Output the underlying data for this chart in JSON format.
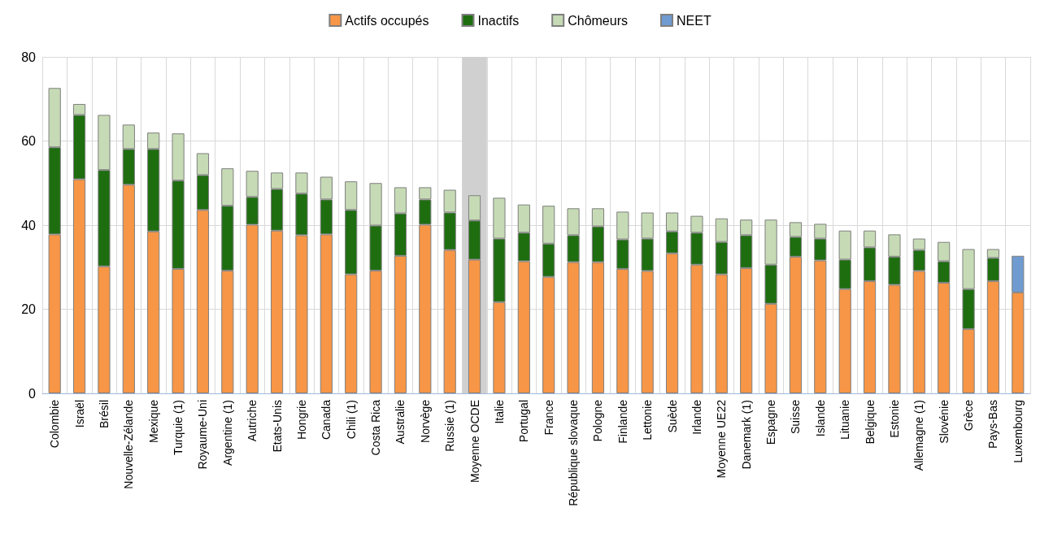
{
  "chart_data": {
    "type": "bar",
    "stacked": true,
    "grid": true,
    "legend": "top",
    "categories": [
      "Colombie",
      "Israël",
      "Brésil",
      "Nouvelle-Zélande",
      "Mexique",
      "Turquie (1)",
      "Royaume-Uni",
      "Argentine (1)",
      "Autriche",
      "Etats-Unis",
      "Hongrie",
      "Canada",
      "Chili (1)",
      "Costa Rica",
      "Australie",
      "Norvège",
      "Russie (1)",
      "Moyenne OCDE",
      "Italie",
      "Portugal",
      "France",
      "République slovaque",
      "Pologne",
      "Finlande",
      "Lettonie",
      "Suède",
      "Irlande",
      "Moyenne UE22",
      "Danemark (1)",
      "Espagne",
      "Suisse",
      "Islande",
      "Lituanie",
      "Belgique",
      "Estonie",
      "Allemagne (1)",
      "Slovénie",
      "Grèce",
      "Pays-Bas",
      "Luxembourg"
    ],
    "series": [
      {
        "name": "Actifs occupés",
        "color": "#f79646",
        "values": [
          37.8,
          50.9,
          30.2,
          49.6,
          38.5,
          29.6,
          43.6,
          29.2,
          40.1,
          38.7,
          37.6,
          37.8,
          28.3,
          29.2,
          32.7,
          40.1,
          34.1,
          31.8,
          21.7,
          31.4,
          27.7,
          31.2,
          31.2,
          29.6,
          29.1,
          33.3,
          30.6,
          28.3,
          29.8,
          21.3,
          32.5,
          31.6,
          24.8,
          26.7,
          25.8,
          29.1,
          26.3,
          15.3,
          26.7,
          24.0
        ]
      },
      {
        "name": "Inactifs",
        "color": "#1e6e10",
        "values": [
          20.7,
          15.3,
          22.9,
          8.5,
          19.6,
          21.0,
          8.3,
          15.4,
          6.6,
          9.9,
          9.9,
          8.3,
          15.3,
          10.7,
          10.1,
          6.0,
          8.9,
          9.3,
          15.1,
          6.8,
          7.9,
          6.4,
          8.5,
          7.0,
          7.7,
          5.2,
          7.6,
          7.7,
          7.8,
          9.3,
          4.7,
          5.2,
          7.0,
          8.0,
          6.7,
          5.0,
          5.1,
          9.5,
          5.5,
          null
        ]
      },
      {
        "name": "Chômeurs",
        "color": "#c6dbb5",
        "values": [
          14.1,
          2.6,
          13.1,
          5.8,
          3.9,
          11.2,
          5.2,
          8.9,
          6.2,
          3.9,
          5.0,
          5.4,
          6.8,
          10.1,
          6.2,
          2.9,
          5.4,
          6.0,
          9.7,
          6.7,
          9.0,
          6.4,
          4.3,
          6.6,
          6.2,
          4.5,
          4.0,
          5.6,
          3.7,
          10.7,
          3.5,
          3.5,
          6.9,
          4.0,
          5.3,
          2.7,
          4.6,
          9.5,
          2.1,
          null
        ]
      },
      {
        "name": "NEET",
        "color": "#6f9bd1",
        "values": [
          null,
          null,
          null,
          null,
          null,
          null,
          null,
          null,
          null,
          null,
          null,
          null,
          null,
          null,
          null,
          null,
          null,
          null,
          null,
          null,
          null,
          null,
          null,
          null,
          null,
          null,
          null,
          null,
          null,
          null,
          null,
          null,
          null,
          null,
          null,
          null,
          null,
          null,
          null,
          8.7
        ]
      }
    ],
    "bands": [
      {
        "axis": "x",
        "from": "Moyenne OCDE",
        "to": "Moyenne OCDE",
        "color": "#d0d0d0"
      }
    ],
    "ylim": [
      0,
      80
    ],
    "yticks": [
      0,
      20,
      40,
      60,
      80
    ]
  }
}
